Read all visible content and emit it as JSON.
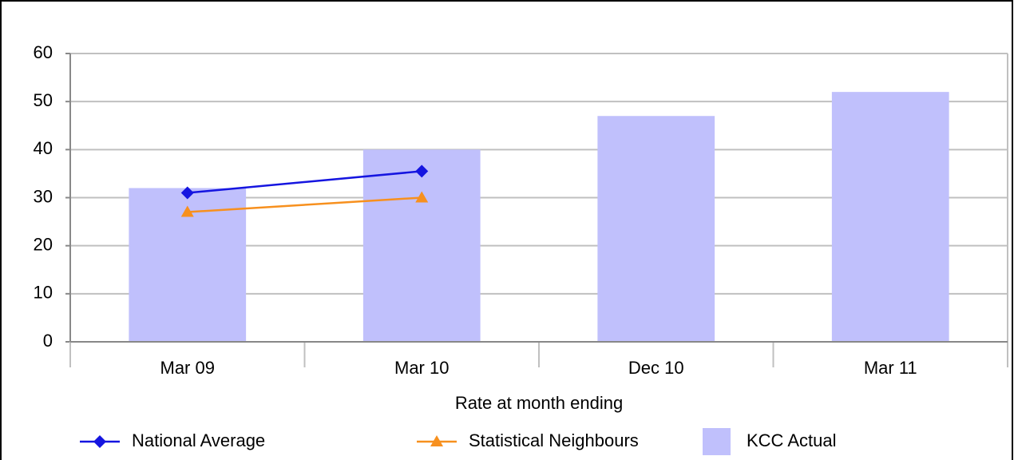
{
  "chart_data": {
    "type": "bar",
    "categories": [
      "Mar 09",
      "Mar 10",
      "Dec 10",
      "Mar 11"
    ],
    "x_label": "Rate at month ending",
    "series": [
      {
        "name": "National Average",
        "type": "line",
        "marker": "diamond",
        "color": "#1515e0",
        "values": [
          31,
          35.5,
          null,
          null
        ]
      },
      {
        "name": "Statistical Neighbours",
        "type": "line",
        "marker": "triangle",
        "color": "#f7901e",
        "values": [
          27,
          30,
          null,
          null
        ]
      },
      {
        "name": "KCC Actual",
        "type": "bar",
        "color": "#c0c0fc",
        "values": [
          32,
          40,
          47,
          52
        ]
      }
    ],
    "ylim": [
      0,
      60
    ],
    "yticks": [
      0,
      10,
      20,
      30,
      40,
      50,
      60
    ],
    "grid": true,
    "legend": "bottom"
  }
}
